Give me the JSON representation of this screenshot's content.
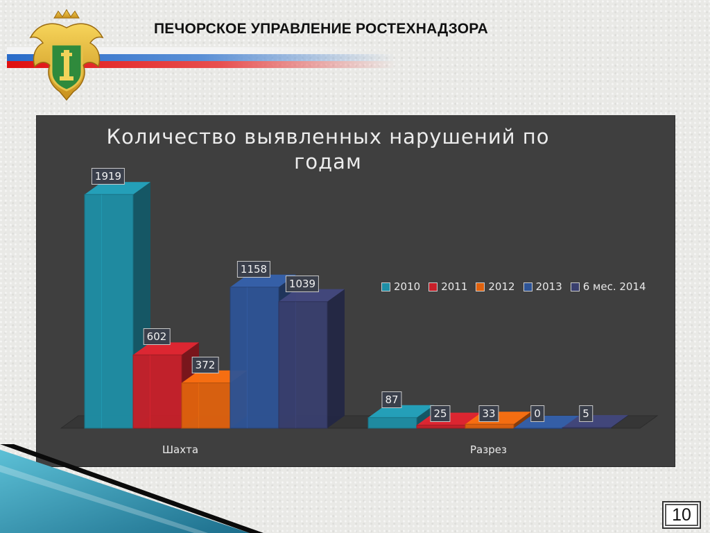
{
  "header": {
    "title": "ПЕЧОРСКОЕ УПРАВЛЕНИЕ РОСТЕХНАДЗОРА"
  },
  "emblem": {
    "icon": "double-headed-eagle-emblem-icon"
  },
  "colors": {
    "2010": "#1e8fa6",
    "2011": "#c8202a",
    "2012": "#e0620e",
    "2013": "#2e5496",
    "6 мес. 2014": "#393f6e",
    "panel": "#3f3f3f"
  },
  "chart_data": {
    "type": "bar",
    "title_lines": [
      "Количество выявленных нарушений по",
      "годам"
    ],
    "categories": [
      "Шахта",
      "Разрез"
    ],
    "legend_position": "right",
    "grid": false,
    "ylim": [
      0,
      2000
    ],
    "series": [
      {
        "name": "2010",
        "values": [
          1919,
          87
        ]
      },
      {
        "name": "2011",
        "values": [
          602,
          25
        ]
      },
      {
        "name": "2012",
        "values": [
          372,
          33
        ]
      },
      {
        "name": "2013",
        "values": [
          1158,
          0
        ]
      },
      {
        "name": "6 мес. 2014",
        "values": [
          1039,
          5
        ]
      }
    ]
  },
  "page_number": "10"
}
